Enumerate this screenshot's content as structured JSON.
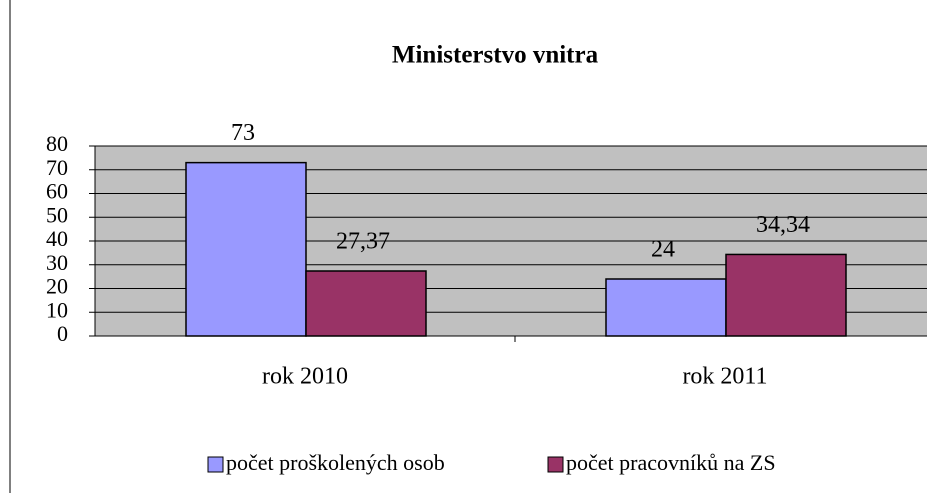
{
  "chart_data": {
    "type": "bar",
    "title": "Ministerstvo vnitra",
    "categories": [
      "rok 2010",
      "rok 2011"
    ],
    "series": [
      {
        "name": "počet proškolených osob",
        "color": "#9999ff",
        "values": [
          73,
          24
        ],
        "value_labels": [
          "73",
          "24"
        ]
      },
      {
        "name": "počet pracovníků na ZS",
        "color": "#993366",
        "values": [
          27.37,
          34.34
        ],
        "value_labels": [
          "27,37",
          "34,34"
        ]
      }
    ],
    "ylim": [
      0,
      80
    ],
    "yticks": [
      0,
      10,
      20,
      30,
      40,
      50,
      60,
      70,
      80
    ],
    "grid": true,
    "legend": "bottom"
  }
}
